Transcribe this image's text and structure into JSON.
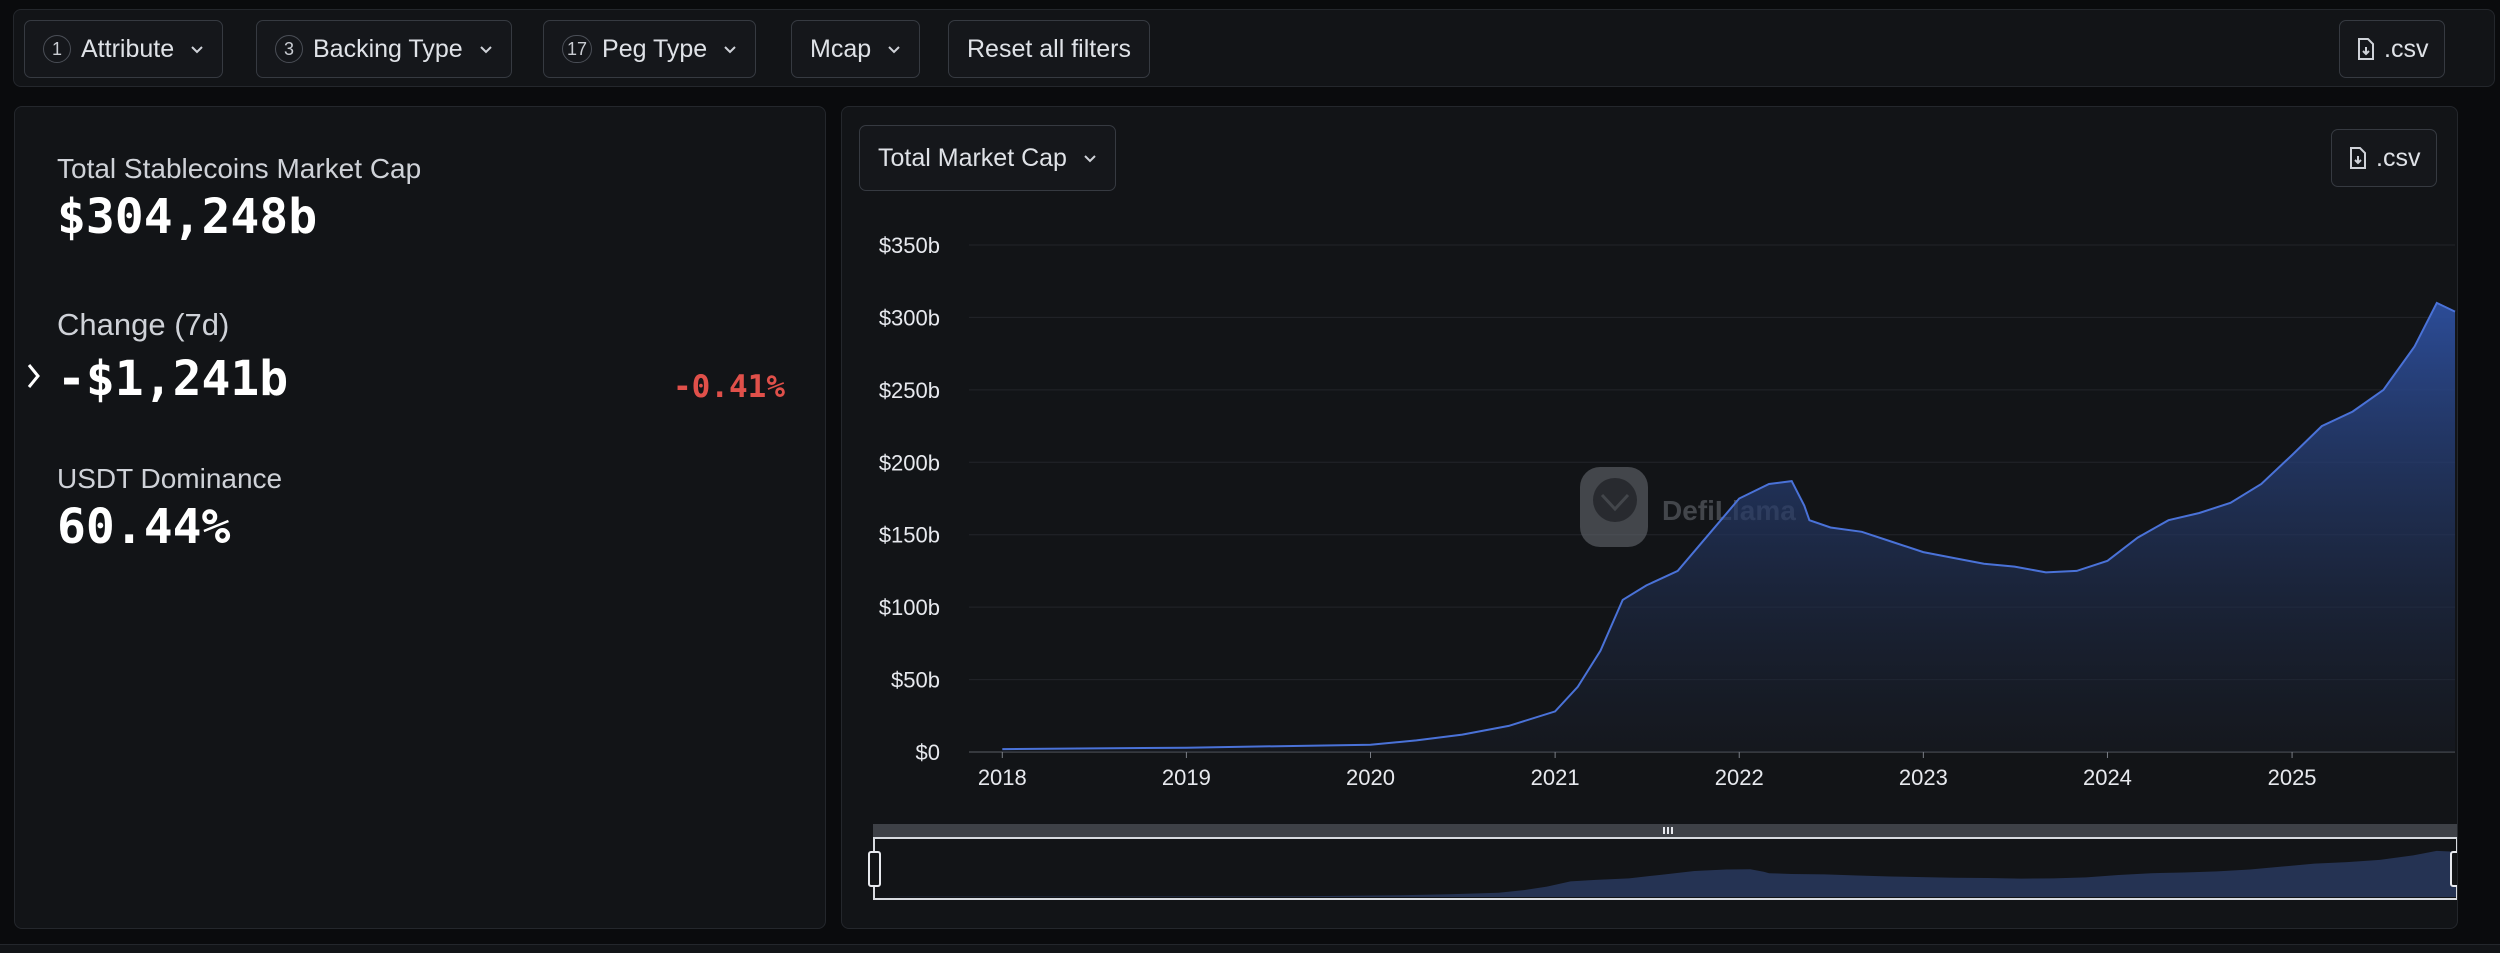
{
  "filters": {
    "attribute": {
      "count": "1",
      "label": "Attribute"
    },
    "backing_type": {
      "count": "3",
      "label": "Backing Type"
    },
    "peg_type": {
      "count": "17",
      "label": "Peg Type"
    },
    "mcap": {
      "label": "Mcap"
    },
    "reset": {
      "label": "Reset all filters"
    },
    "csv": {
      "label": ".csv",
      "icon": "file-download-icon"
    }
  },
  "stats": {
    "total_label": "Total Stablecoins Market Cap",
    "total_value": "$304,248b",
    "change_label": "Change (7d)",
    "change_value": "-$1,241b",
    "change_pct": "-0.41%",
    "dominance_label": "USDT Dominance",
    "dominance_value": "60.44%"
  },
  "chart_panel": {
    "metric_select": "Total Market Cap",
    "csv_label": ".csv",
    "watermark": "DefiLlama"
  },
  "colors": {
    "accent_line": "#4a72d8",
    "area_top": "#2d4f9e",
    "negative": "#e0504a",
    "background": "#121417"
  },
  "chart_data": {
    "type": "area",
    "title": "",
    "xlabel": "",
    "ylabel": "",
    "x_ticks": [
      "2018",
      "2019",
      "2020",
      "2021",
      "2022",
      "2023",
      "2024",
      "2025"
    ],
    "y_ticks": [
      "$0",
      "$50b",
      "$100b",
      "$150b",
      "$200b",
      "$250b",
      "$300b",
      "$350b"
    ],
    "ylim": [
      0,
      350
    ],
    "y_unit": "billions USD",
    "grid": true,
    "legend": "none",
    "series": [
      {
        "x": [
          "2018-01-01",
          "2018-07-01",
          "2019-01-01",
          "2019-07-01",
          "2020-01-01",
          "2020-04-01",
          "2020-07-01",
          "2020-10-01",
          "2021-01-01",
          "2021-02-15",
          "2021-04-01",
          "2021-05-15",
          "2021-07-01",
          "2021-09-01",
          "2021-11-01",
          "2022-01-01",
          "2022-03-01",
          "2022-04-15",
          "2022-05-10",
          "2022-05-20",
          "2022-07-01",
          "2022-09-01",
          "2022-11-01",
          "2023-01-01",
          "2023-03-01",
          "2023-05-01",
          "2023-07-01",
          "2023-09-01",
          "2023-11-01",
          "2024-01-01",
          "2024-03-01",
          "2024-05-01",
          "2024-07-01",
          "2024-09-01",
          "2024-11-01",
          "2025-01-01",
          "2025-03-01",
          "2025-05-01",
          "2025-07-01",
          "2025-09-01",
          "2025-10-15",
          "2025-11-20"
        ],
        "y": [
          2,
          2.5,
          3,
          4,
          5,
          8,
          12,
          18,
          28,
          45,
          70,
          105,
          115,
          125,
          150,
          175,
          185,
          187,
          170,
          160,
          155,
          152,
          145,
          138,
          134,
          130,
          128,
          124,
          125,
          132,
          148,
          160,
          165,
          172,
          185,
          205,
          225,
          235,
          250,
          280,
          310,
          304
        ]
      }
    ]
  }
}
